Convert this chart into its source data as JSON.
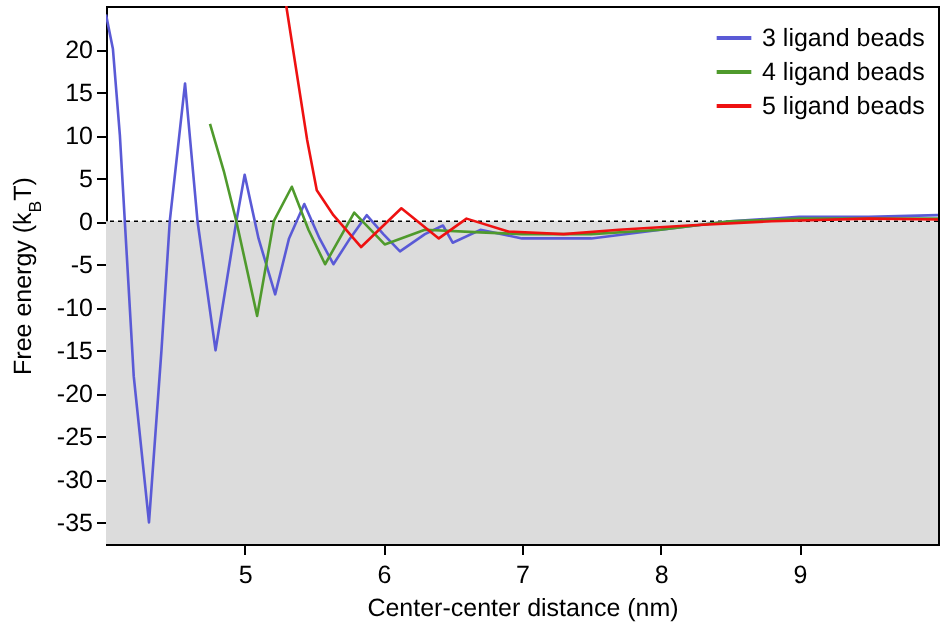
{
  "chart_data": {
    "type": "line",
    "xlabel": "Center-center distance (nm)",
    "ylabel": "Free energy (k$_{B}$T)",
    "xlim": [
      4,
      10
    ],
    "ylim": [
      -37.5,
      25
    ],
    "xticks": [
      5,
      6,
      7,
      8,
      9
    ],
    "yticks": [
      -35,
      -30,
      -25,
      -20,
      -15,
      -10,
      -5,
      0,
      5,
      10,
      15,
      20
    ],
    "legend": "top right",
    "grid": false,
    "bands": [
      {
        "axis": "y",
        "from": -37.5,
        "to": 0,
        "color": "#dcdcdc"
      }
    ],
    "ref_lines": [
      {
        "axis": "y",
        "value": 0,
        "color": "#000000",
        "line_style": "dotted"
      }
    ],
    "series": [
      {
        "name": "3 ligand beads",
        "color": "#5a5ad6",
        "x": [
          4.0,
          4.05,
          4.1,
          4.2,
          4.31,
          4.4,
          4.46,
          4.57,
          4.66,
          4.79,
          4.94,
          5.0,
          5.1,
          5.22,
          5.32,
          5.43,
          5.54,
          5.64,
          5.76,
          5.88,
          6.0,
          6.12,
          6.3,
          6.43,
          6.5,
          6.7,
          7.0,
          7.5,
          8.0,
          8.5,
          9.0,
          9.5,
          10.0
        ],
        "values": [
          24,
          20,
          10,
          -18,
          -35,
          -15,
          0,
          16,
          0,
          -15,
          0,
          5.4,
          -2,
          -8.5,
          -2,
          2,
          -2,
          -5,
          -2,
          0.7,
          -1.5,
          -3.5,
          -1.5,
          -0.5,
          -2.5,
          -1,
          -2,
          -2,
          -1,
          0,
          0.5,
          0.5,
          0.7
        ]
      },
      {
        "name": "4 ligand beads",
        "color": "#4f9a2c",
        "x": [
          4.75,
          4.85,
          4.94,
          5.09,
          5.21,
          5.34,
          5.46,
          5.58,
          5.79,
          6.01,
          6.3,
          6.7,
          7.0,
          7.5,
          8.0,
          8.5,
          9.0,
          9.5,
          10.0
        ],
        "values": [
          11.3,
          5.8,
          0,
          -11,
          0,
          4,
          -1,
          -5,
          1,
          -2.7,
          -1,
          -1.3,
          -1.5,
          -1.5,
          -1,
          0,
          0.3,
          0.3,
          0.3
        ]
      },
      {
        "name": "5 ligand beads",
        "color": "#ee1111",
        "x": [
          5.3,
          5.45,
          5.52,
          5.64,
          5.84,
          6.13,
          6.4,
          6.6,
          6.9,
          7.3,
          7.7,
          8.2,
          8.8,
          9.5,
          10.0
        ],
        "values": [
          25,
          9.5,
          3.6,
          0.7,
          -3,
          1.5,
          -2,
          0.3,
          -1.2,
          -1.5,
          -1,
          -0.5,
          0,
          0.3,
          0.2
        ]
      }
    ]
  }
}
